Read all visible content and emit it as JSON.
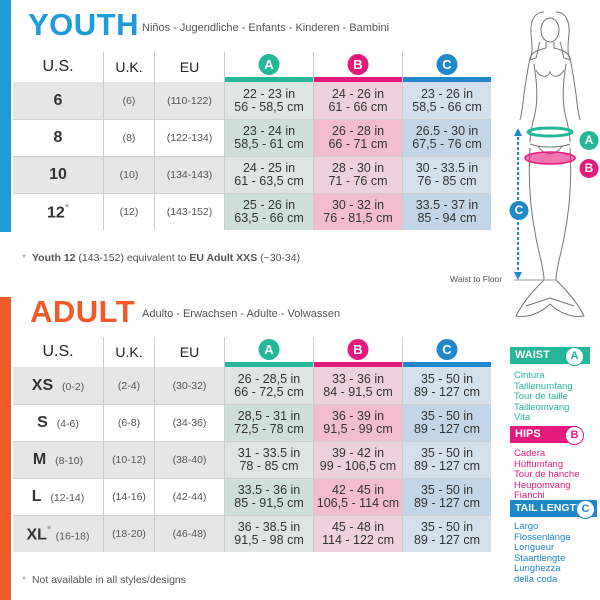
{
  "colors": {
    "youth": "#1f9bdb",
    "adult": "#f05a28",
    "a": "#25b79a",
    "b": "#e6197d",
    "c": "#1e88c8"
  },
  "youth": {
    "title": "YOUTH",
    "subtitle": "Niños - Jugendliche - Enfants - Kinderen - Bambini",
    "headers": {
      "us": "U.S.",
      "uk": "U.K.",
      "eu": "EU",
      "a": "A",
      "b": "B",
      "c": "C"
    },
    "rows": [
      {
        "us": "6",
        "uk": "(6)",
        "eu": "(110-122)",
        "a1": "22 - 23 in",
        "a2": "56 - 58,5 cm",
        "b1": "24 - 26 in",
        "b2": "61 - 66 cm",
        "c1": "23 - 26 in",
        "c2": "58,5 - 66 cm"
      },
      {
        "us": "8",
        "uk": "(8)",
        "eu": "(122-134)",
        "a1": "23 - 24 in",
        "a2": "58,5 - 61 cm",
        "b1": "26 - 28 in",
        "b2": "66 - 71 cm",
        "c1": "26.5 - 30 in",
        "c2": "67,5 - 76 cm"
      },
      {
        "us": "10",
        "uk": "(10)",
        "eu": "(134-143)",
        "a1": "24 - 25 in",
        "a2": "61 - 63,5 cm",
        "b1": "28 - 30 in",
        "b2": "71 - 76 cm",
        "c1": "30 - 33.5 in",
        "c2": "76 - 85 cm"
      },
      {
        "us": "12",
        "star": "*",
        "uk": "(12)",
        "eu": "(143-152)",
        "a1": "25 - 26 in",
        "a2": "63,5 - 66 cm",
        "b1": "30 - 32 in",
        "b2": "76 - 81,5 cm",
        "c1": "33.5 - 37 in",
        "c2": "85 - 94 cm"
      }
    ],
    "note_star": "*",
    "note_bold1": "Youth 12",
    "note_mid": " (143-152) equivalent to ",
    "note_bold2": "EU Adult XXS",
    "note_end": " (~30-34)"
  },
  "adult": {
    "title": "ADULT",
    "subtitle": "Adulto - Erwachsen - Adulte - Volwassen",
    "headers": {
      "us": "U.S.",
      "uk": "U.K.",
      "eu": "EU",
      "a": "A",
      "b": "B",
      "c": "C"
    },
    "rows": [
      {
        "us": "XS",
        "us_sub": "(0-2)",
        "uk": "(2-4)",
        "eu": "(30-32)",
        "a1": "26 - 28,5 in",
        "a2": "66 - 72,5 cm",
        "b1": "33 - 36 in",
        "b2": "84 - 91,5 cm",
        "c1": "35 - 50 in",
        "c2": "89 - 127 cm"
      },
      {
        "us": "S",
        "us_sub": "(4-6)",
        "uk": "(6-8)",
        "eu": "(34-36)",
        "a1": "28,5 - 31 in",
        "a2": "72,5 - 78 cm",
        "b1": "36 - 39 in",
        "b2": "91,5 - 99 cm",
        "c1": "35 - 50 in",
        "c2": "89 - 127 cm"
      },
      {
        "us": "M",
        "us_sub": "(8-10)",
        "uk": "(10-12)",
        "eu": "(38-40)",
        "a1": "31 - 33.5 in",
        "a2": "78 - 85 cm",
        "b1": "39 - 42 in",
        "b2": "99 - 106,5 cm",
        "c1": "35 - 50 in",
        "c2": "89 - 127 cm"
      },
      {
        "us": "L",
        "us_sub": "(12-14)",
        "uk": "(14-16)",
        "eu": "(42-44)",
        "a1": "33.5 - 36 in",
        "a2": "85 - 91,5 cm",
        "b1": "42 - 45 in",
        "b2": "106,5 - 114 cm",
        "c1": "35 - 50 in",
        "c2": "89 - 127 cm"
      },
      {
        "us": "XL",
        "star": "*",
        "us_sub": "(16-18)",
        "uk": "(18-20)",
        "eu": "(46-48)",
        "a1": "36 - 38.5 in",
        "a2": "91,5 - 98 cm",
        "b1": "45 - 48 in",
        "b2": "114 - 122 cm",
        "c1": "35 - 50 in",
        "c2": "89 - 127 cm"
      }
    ],
    "note_star": "*",
    "note": "Not available in all styles/designs"
  },
  "figure": {
    "waist_to_floor": "Waist to Floor",
    "a": "A",
    "b": "B",
    "c": "C"
  },
  "legend": [
    {
      "title": "WAIST",
      "letter": "A",
      "items": [
        "Cintura",
        "Taillenumfang",
        "Tour de taille",
        "Tailleomvang",
        "Vita"
      ]
    },
    {
      "title": "HIPS",
      "letter": "B",
      "items": [
        "Cadera",
        "Hüftumfang",
        "Tour de hanche",
        "Heupomvang",
        "Fianchi"
      ]
    },
    {
      "title": "TAIL LENGTH",
      "letter": "C",
      "items": [
        "Largo",
        "Flossenlänge",
        "Longueur",
        "Staartlengte",
        "Lunghezza",
        "della coda"
      ]
    }
  ]
}
